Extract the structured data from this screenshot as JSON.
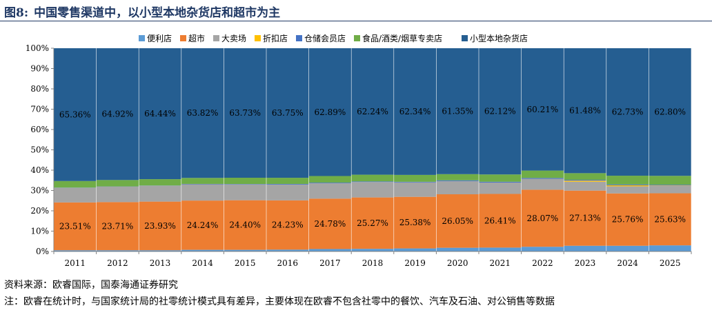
{
  "header": {
    "figure_label": "图8:",
    "title": "中国零售渠道中，以小型本地杂货店和超市为主"
  },
  "footer": {
    "source": "资料来源：欧睿国际，国泰海通证券研究",
    "note": "注：欧睿在统计时，与国家统计局的社零统计模式具有差异，主要体现在欧睿不包含社零中的餐饮、汽车及石油、对公销售等数据"
  },
  "chart_data": {
    "type": "bar",
    "stacked": true,
    "percent": true,
    "categories": [
      "2011",
      "2012",
      "2013",
      "2014",
      "2015",
      "2016",
      "2017",
      "2018",
      "2019",
      "2020",
      "2021",
      "2022",
      "2023",
      "2024",
      "2025"
    ],
    "ylim": [
      0,
      100
    ],
    "yticks": [
      "0%",
      "10%",
      "20%",
      "30%",
      "40%",
      "50%",
      "60%",
      "70%",
      "80%",
      "90%",
      "100%"
    ],
    "grid": false,
    "legend": "top",
    "series": [
      {
        "name": "便利店",
        "color": "#5b9bd5",
        "values": [
          0.6,
          0.6,
          0.6,
          0.8,
          0.8,
          0.9,
          1.2,
          1.3,
          1.5,
          1.8,
          1.9,
          2.3,
          2.8,
          2.8,
          3.0
        ]
      },
      {
        "name": "超市",
        "color": "#ed7d31",
        "values": [
          23.51,
          23.71,
          23.93,
          24.24,
          24.4,
          24.23,
          24.78,
          25.27,
          25.38,
          26.05,
          26.41,
          28.07,
          27.13,
          25.76,
          25.63
        ]
      },
      {
        "name": "大卖场",
        "color": "#a5a5a5",
        "values": [
          7.2,
          7.6,
          7.8,
          8.0,
          7.8,
          7.8,
          7.6,
          7.6,
          7.1,
          6.4,
          5.6,
          5.4,
          4.4,
          3.5,
          3.6
        ]
      },
      {
        "name": "折扣店",
        "color": "#ffc000",
        "values": [
          0,
          0,
          0,
          0,
          0,
          0,
          0,
          0,
          0,
          0,
          0,
          0,
          0.5,
          0.5,
          0.2
        ]
      },
      {
        "name": "仓储会员店",
        "color": "#4472c4",
        "values": [
          0.1,
          0.1,
          0.1,
          0.2,
          0.2,
          0.3,
          0.3,
          0.3,
          0.3,
          0.4,
          0.4,
          0.4,
          0.4,
          0.4,
          0.4
        ]
      },
      {
        "name": "食品/酒类/烟草专卖店",
        "color": "#70ad47",
        "values": [
          3.23,
          3.17,
          3.13,
          2.94,
          3.07,
          3.02,
          3.23,
          3.29,
          3.38,
          3.0,
          3.57,
          3.62,
          3.29,
          4.31,
          4.37
        ]
      },
      {
        "name": "小型本地杂货店",
        "color": "#255e91",
        "values": [
          65.36,
          64.92,
          64.44,
          63.82,
          63.73,
          63.75,
          62.89,
          62.24,
          62.34,
          61.35,
          62.12,
          60.21,
          61.48,
          62.73,
          62.8
        ]
      }
    ],
    "data_labels": [
      {
        "series": "超市",
        "values": [
          "23.51%",
          "23.71%",
          "23.93%",
          "24.24%",
          "24.40%",
          "24.23%",
          "24.78%",
          "25.27%",
          "25.38%",
          "26.05%",
          "26.41%",
          "28.07%",
          "27.13%",
          "25.76%",
          "25.63%"
        ]
      },
      {
        "series": "小型本地杂货店",
        "values": [
          "65.36%",
          "64.92%",
          "64.44%",
          "63.82%",
          "63.73%",
          "63.75%",
          "62.89%",
          "62.24%",
          "62.34%",
          "61.35%",
          "62.12%",
          "60.21%",
          "61.48%",
          "62.73%",
          "62.80%"
        ]
      }
    ]
  }
}
